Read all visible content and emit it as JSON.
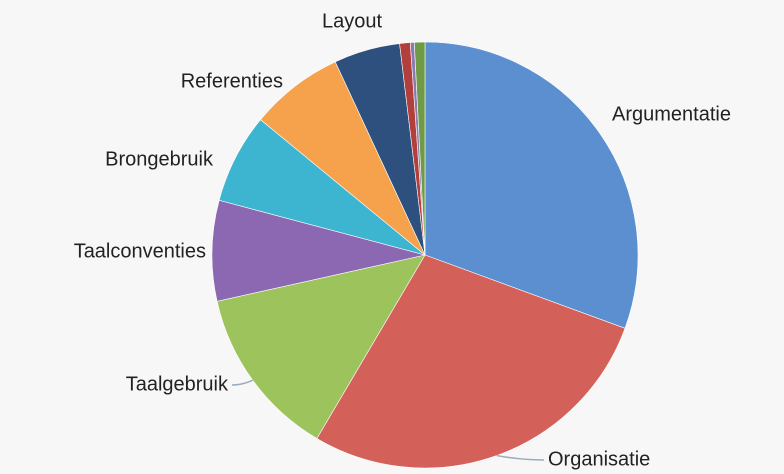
{
  "chart_data": {
    "type": "pie",
    "categories": [
      "Argumentatie",
      "Organisatie",
      "Taalgebruik",
      "Taalconventies",
      "Brongebruik",
      "Referenties",
      "Layout",
      null,
      null,
      null
    ],
    "values": [
      30.5,
      27.8,
      13,
      7.6,
      6.8,
      7.1,
      5,
      0.8,
      0.3,
      0.8
    ],
    "colors": [
      "#5b8fd0",
      "#d4605a",
      "#9dc35c",
      "#8b68b1",
      "#3db5d1",
      "#f6a14b",
      "#2d507e",
      "#b23f3c",
      "#8a7ab0",
      "#6f9b47"
    ]
  }
}
